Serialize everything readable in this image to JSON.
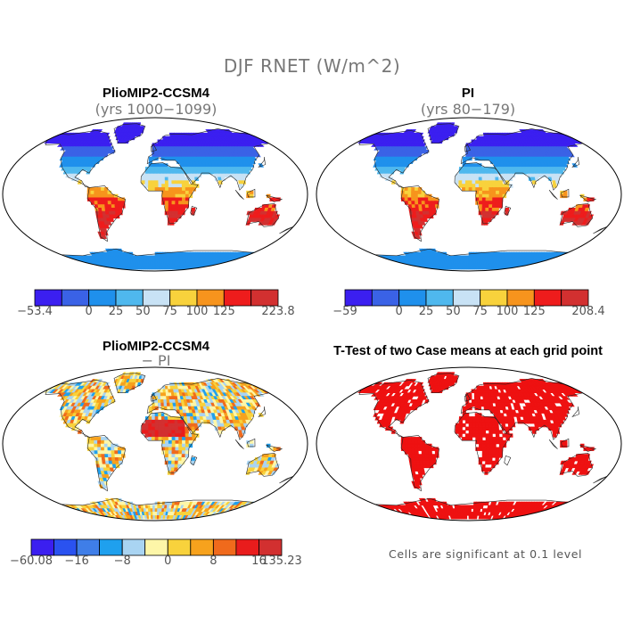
{
  "title": "DJF RNET (W/m^2)",
  "note": "Cells are significant at 0.1 level",
  "panels": [
    {
      "title": "PlioMIP2-CCSM4",
      "subtitle": "(yrs 1000−1099)"
    },
    {
      "title": "PI",
      "subtitle": "(yrs 80−179)"
    },
    {
      "title": "PlioMIP2-CCSM4",
      "subtitle": "− PI"
    },
    {
      "title": "T-Test of two Case means at each grid point",
      "subtitle": ""
    }
  ],
  "chart_data": [
    {
      "type": "heatmap",
      "title": "PlioMIP2-CCSM4",
      "subtitle": "(yrs 1000−1099)",
      "colorbar_ticks": [
        "−53.4",
        "0",
        "25",
        "50",
        "75",
        "100",
        "125",
        "223.8"
      ],
      "colorbar_colors": [
        "#3b1ff0",
        "#3a62e6",
        "#1f90ec",
        "#4fb8ee",
        "#c8e2f5",
        "#f8d23c",
        "#f7941d",
        "#ee1c1c",
        "#d23030"
      ],
      "range": [
        -53.4,
        223.8
      ]
    },
    {
      "type": "heatmap",
      "title": "PI",
      "subtitle": "(yrs 80−179)",
      "colorbar_ticks": [
        "−59",
        "0",
        "25",
        "50",
        "75",
        "100",
        "125",
        "208.4"
      ],
      "colorbar_colors": [
        "#3b1ff0",
        "#3a62e6",
        "#1f90ec",
        "#4fb8ee",
        "#c8e2f5",
        "#f8d23c",
        "#f7941d",
        "#ee1c1c",
        "#d23030"
      ],
      "range": [
        -59,
        208.4
      ]
    },
    {
      "type": "heatmap",
      "title": "PlioMIP2-CCSM4",
      "subtitle": "− PI",
      "colorbar_ticks": [
        "−60.08",
        "−16",
        "−8",
        "0",
        "8",
        "16",
        "135.23"
      ],
      "colorbar_colors": [
        "#3b1ff0",
        "#2a52f0",
        "#3f7ee8",
        "#1fa0ee",
        "#a9d4f2",
        "#fdf6a8",
        "#f8d23c",
        "#f7a21d",
        "#f06a1c",
        "#e91c1c",
        "#d23030"
      ],
      "range": [
        -60.08,
        135.23
      ]
    },
    {
      "type": "heatmap",
      "title": "T-Test of two Case means at each grid point",
      "significance_level": 0.1,
      "color": "#ee1111"
    }
  ]
}
